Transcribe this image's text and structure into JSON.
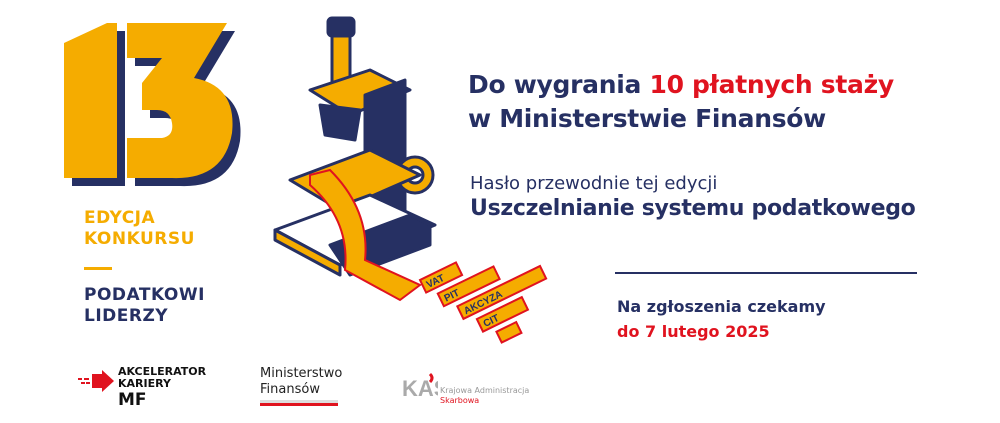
{
  "edition": {
    "number": "13",
    "line1": "EDYCJA",
    "line2": "KONKURSU",
    "program1": "PODATKOWI",
    "program2": "LIDERZY"
  },
  "headline": {
    "part1": "Do wygrania ",
    "highlight": "10 płatnych staży",
    "line2": "w Ministerstwie Finansów"
  },
  "motto": {
    "label": "Hasło przewodnie tej edycji",
    "text": "Uszczelnianie systemu podatkowego"
  },
  "deadline": {
    "line1": "Na zgłoszenia czekamy",
    "line2": "do 7 lutego 2025"
  },
  "illustration": {
    "taxes": [
      "VAT",
      "PIT",
      "AKCYZA",
      "CIT"
    ]
  },
  "logos": {
    "akcelerator": {
      "line1": "AKCELERATOR",
      "line2": "KARIERY",
      "line3": "MF"
    },
    "ministry": {
      "line1": "Ministerstwo",
      "line2": "Finansów"
    },
    "kas": {
      "mark": "KAS",
      "line1": "Krajowa Administracja",
      "line2": "Skarbowa"
    }
  },
  "colors": {
    "navy": "#263063",
    "yellow": "#f5ac00",
    "red": "#e0131f"
  }
}
